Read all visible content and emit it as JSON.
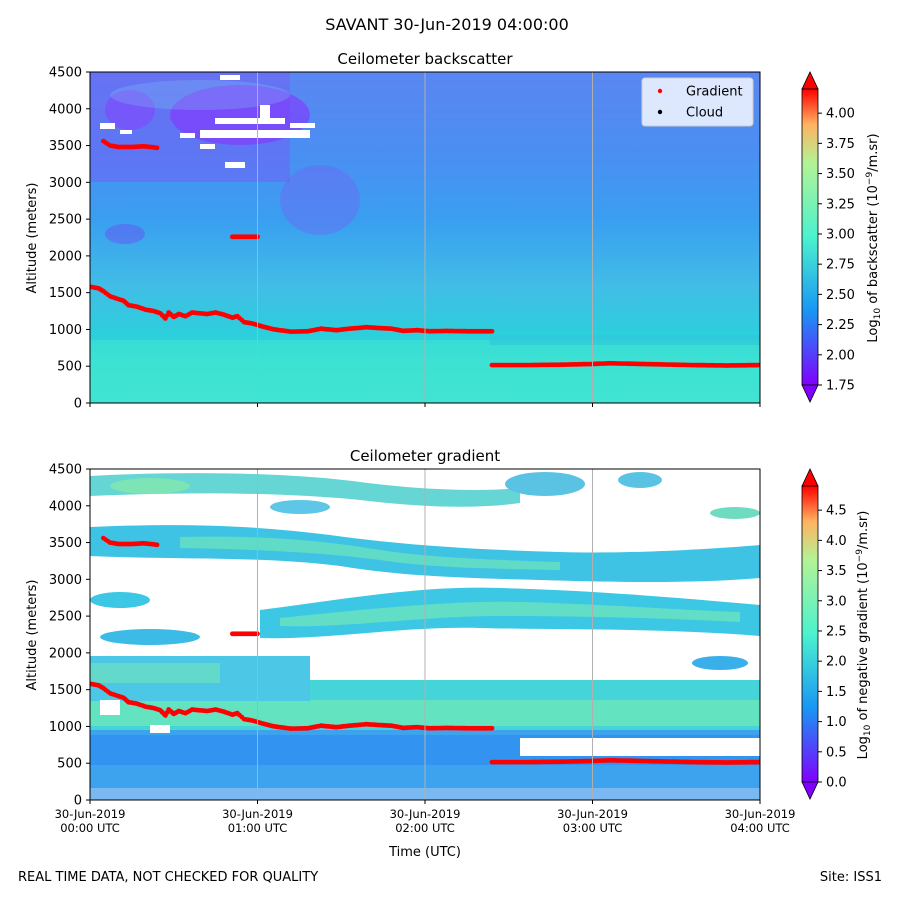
{
  "figure": {
    "suptitle": "SAVANT 30-Jun-2019 04:00:00",
    "footer_left": "REAL TIME DATA, NOT CHECKED FOR QUALITY",
    "footer_right": "Site: ISS1"
  },
  "chart_data": [
    {
      "type": "heatmap",
      "title": "Ceilometer backscatter",
      "xlabel": "",
      "ylabel": "Altitude (meters)",
      "x_ticks": [
        "30-Jun-2019\n00:00 UTC",
        "30-Jun-2019\n01:00 UTC",
        "30-Jun-2019\n02:00 UTC",
        "30-Jun-2019\n03:00 UTC",
        "30-Jun-2019\n04:00 UTC"
      ],
      "x_tick_labels_shown": false,
      "xlim": [
        "2019-06-30T00:00:00",
        "2019-06-30T04:00:00"
      ],
      "ylim": [
        0,
        4500
      ],
      "y_ticks": [
        0,
        500,
        1000,
        1500,
        2000,
        2500,
        3000,
        3500,
        4000,
        4500
      ],
      "grid": "vertical lines at hourly ticks",
      "colormap": "rainbow",
      "colorbar": {
        "label": "Log10 of backscatter (10^-9/m.sr)",
        "range": [
          1.75,
          4.2
        ],
        "ticks": [
          "1.75",
          "2.00",
          "2.25",
          "2.50",
          "2.75",
          "3.00",
          "3.25",
          "3.50",
          "3.75",
          "4.00"
        ],
        "extend": "both"
      },
      "legend": {
        "placement": "upper right",
        "entries": [
          {
            "name": "Gradient",
            "color": "#ff0000"
          },
          {
            "name": "Cloud",
            "color": "#000000"
          }
        ]
      }
    },
    {
      "type": "heatmap",
      "title": "Ceilometer gradient",
      "xlabel": "Time (UTC)",
      "ylabel": "Altitude (meters)",
      "x_ticks": [
        "30-Jun-2019\n00:00 UTC",
        "30-Jun-2019\n01:00 UTC",
        "30-Jun-2019\n02:00 UTC",
        "30-Jun-2019\n03:00 UTC",
        "30-Jun-2019\n04:00 UTC"
      ],
      "xlim": [
        "2019-06-30T00:00:00",
        "2019-06-30T04:00:00"
      ],
      "ylim": [
        0,
        4500
      ],
      "y_ticks": [
        0,
        500,
        1000,
        1500,
        2000,
        2500,
        3000,
        3500,
        4000,
        4500
      ],
      "grid": "vertical lines at hourly ticks",
      "colormap": "rainbow",
      "colorbar": {
        "label": "Log10 of negative gradient (10^-9/m.sr)",
        "range": [
          0.0,
          4.9
        ],
        "ticks": [
          "0.0",
          "0.5",
          "1.0",
          "1.5",
          "2.0",
          "2.5",
          "3.0",
          "3.5",
          "4.0",
          "4.5"
        ],
        "extend": "both"
      }
    }
  ],
  "gradient_series": {
    "color": "#ff0000",
    "segments": [
      [
        [
          0.0,
          1580
        ],
        [
          0.05,
          1560
        ],
        [
          0.08,
          1520
        ],
        [
          0.12,
          1450
        ],
        [
          0.16,
          1420
        ],
        [
          0.2,
          1390
        ],
        [
          0.23,
          1330
        ],
        [
          0.28,
          1310
        ],
        [
          0.33,
          1270
        ],
        [
          0.38,
          1250
        ],
        [
          0.42,
          1220
        ],
        [
          0.45,
          1150
        ],
        [
          0.47,
          1230
        ],
        [
          0.5,
          1170
        ],
        [
          0.53,
          1210
        ],
        [
          0.57,
          1180
        ],
        [
          0.61,
          1230
        ],
        [
          0.65,
          1220
        ],
        [
          0.7,
          1210
        ],
        [
          0.75,
          1230
        ],
        [
          0.8,
          1200
        ],
        [
          0.85,
          1160
        ],
        [
          0.88,
          1180
        ],
        [
          0.92,
          1100
        ],
        [
          0.97,
          1080
        ],
        [
          1.03,
          1040
        ],
        [
          1.1,
          1000
        ],
        [
          1.2,
          970
        ],
        [
          1.3,
          975
        ],
        [
          1.38,
          1010
        ],
        [
          1.47,
          990
        ],
        [
          1.55,
          1010
        ],
        [
          1.65,
          1030
        ],
        [
          1.72,
          1020
        ],
        [
          1.8,
          1010
        ],
        [
          1.87,
          980
        ],
        [
          1.95,
          990
        ],
        [
          2.03,
          975
        ],
        [
          2.13,
          980
        ],
        [
          2.25,
          975
        ],
        [
          2.4,
          975
        ]
      ],
      [
        [
          0.08,
          3560
        ],
        [
          0.12,
          3500
        ],
        [
          0.17,
          3480
        ],
        [
          0.25,
          3480
        ],
        [
          0.32,
          3490
        ],
        [
          0.4,
          3470
        ]
      ],
      [
        [
          0.85,
          2260
        ],
        [
          1.0,
          2260
        ]
      ],
      [
        [
          2.4,
          515
        ],
        [
          2.6,
          515
        ],
        [
          2.8,
          520
        ],
        [
          3.0,
          530
        ],
        [
          3.1,
          540
        ],
        [
          3.2,
          535
        ],
        [
          3.4,
          525
        ],
        [
          3.6,
          515
        ],
        [
          3.8,
          510
        ],
        [
          4.0,
          515
        ]
      ]
    ]
  }
}
